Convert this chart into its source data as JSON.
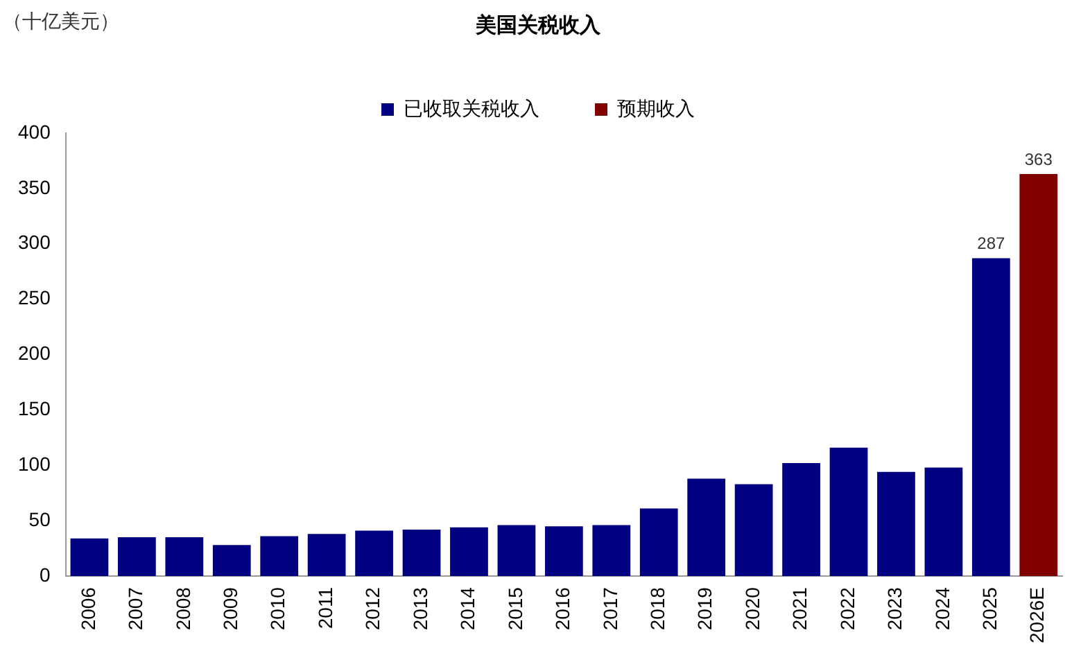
{
  "chart_data": {
    "type": "bar",
    "title": "美国关税收入",
    "ylabel": "（十亿美元）",
    "categories": [
      "2006",
      "2007",
      "2008",
      "2009",
      "2010",
      "2011",
      "2012",
      "2013",
      "2014",
      "2015",
      "2016",
      "2017",
      "2018",
      "2019",
      "2020",
      "2021",
      "2022",
      "2023",
      "2024",
      "2025",
      "2026E"
    ],
    "series": [
      {
        "name": "已收取关税收入",
        "color": "#000080",
        "values": [
          34,
          35,
          35,
          28,
          36,
          38,
          41,
          42,
          44,
          46,
          45,
          46,
          61,
          88,
          83,
          102,
          116,
          94,
          98,
          287,
          null
        ],
        "value_labels": [
          null,
          null,
          null,
          null,
          null,
          null,
          null,
          null,
          null,
          null,
          null,
          null,
          null,
          null,
          null,
          null,
          null,
          null,
          null,
          "287",
          null
        ]
      },
      {
        "name": "预期收入",
        "color": "#800000",
        "values": [
          null,
          null,
          null,
          null,
          null,
          null,
          null,
          null,
          null,
          null,
          null,
          null,
          null,
          null,
          null,
          null,
          null,
          null,
          null,
          null,
          363
        ],
        "value_labels": [
          null,
          null,
          null,
          null,
          null,
          null,
          null,
          null,
          null,
          null,
          null,
          null,
          null,
          null,
          null,
          null,
          null,
          null,
          null,
          null,
          "363"
        ]
      }
    ],
    "ylim": [
      0,
      400
    ],
    "yticks": [
      0,
      50,
      100,
      150,
      200,
      250,
      300,
      350,
      400
    ],
    "grid": false,
    "legend": "top"
  }
}
